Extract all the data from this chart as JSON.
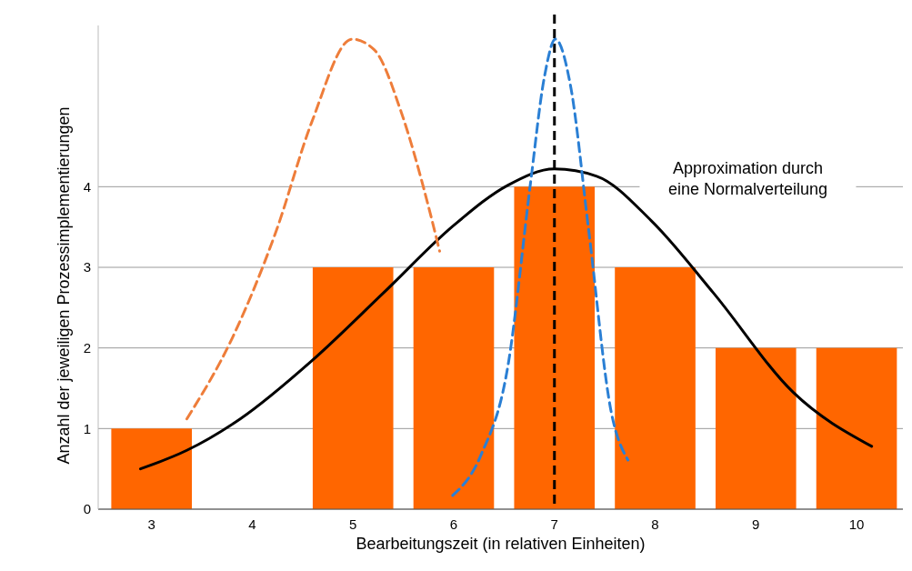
{
  "chart_data": {
    "type": "bar",
    "xlabel": "Bearbeitungszeit (in relativen Einheiten)",
    "ylabel": "Anzahl der jeweiligen Prozessimplementierungen",
    "x": [
      3,
      4,
      5,
      6,
      7,
      8,
      9,
      10
    ],
    "xlim": [
      2.47,
      10.46
    ],
    "xticks": [
      3,
      4,
      5,
      6,
      7,
      8,
      9,
      10
    ],
    "ylim": [
      0,
      6
    ],
    "yticks": [
      0,
      1,
      2,
      3,
      4
    ],
    "grid": "y",
    "series": [
      {
        "color": "#ff6600",
        "values": [
          1,
          0,
          3,
          3,
          4,
          3,
          2,
          2
        ]
      },
      {
        "type": "line",
        "color": "#000000",
        "line_style": "solid",
        "x": [
          2.89,
          3.35,
          3.88,
          4.59,
          5.3,
          6.0,
          6.54,
          7.0,
          7.42,
          7.96,
          8.58,
          9.37,
          10.15
        ],
        "values": [
          0.5,
          0.73,
          1.12,
          1.84,
          2.68,
          3.52,
          4.02,
          4.22,
          4.13,
          3.58,
          2.68,
          1.45,
          0.78
        ]
      },
      {
        "type": "line",
        "color": "#ee7d3a",
        "line_style": "dashed",
        "x": [
          3.35,
          3.8,
          4.24,
          4.59,
          4.99,
          5.21,
          5.48,
          5.74,
          5.86
        ],
        "values": [
          1.12,
          2.12,
          3.46,
          4.8,
          5.83,
          5.7,
          4.92,
          3.8,
          3.2
        ]
      },
      {
        "type": "line",
        "color": "#2a7fd4",
        "line_style": "dashed",
        "x": [
          5.99,
          6.27,
          6.54,
          6.76,
          6.9,
          7.01,
          7.16,
          7.34,
          7.56,
          7.73
        ],
        "values": [
          0.17,
          0.67,
          1.79,
          4.02,
          5.36,
          5.83,
          5.25,
          3.46,
          1.23,
          0.61
        ]
      }
    ],
    "ref_lines": [
      {
        "axis": "x",
        "value": 7,
        "color": "#000000",
        "line_style": "dashed"
      }
    ],
    "annotations": [
      "Approximation durch eine Normalverteilung"
    ]
  }
}
